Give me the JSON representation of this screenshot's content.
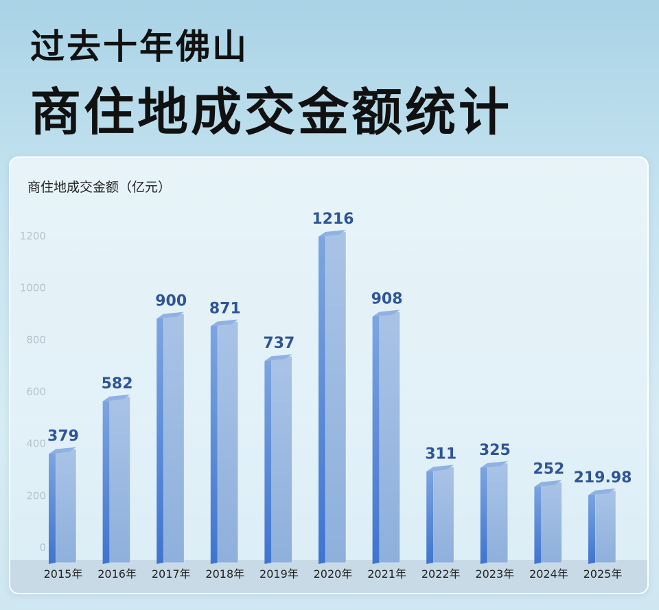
{
  "header": {
    "title_line1": "过去十年佛山",
    "title_line2": "商住地成交金额统计"
  },
  "colors": {
    "bar_front": "#9bb8de",
    "bar_side": "#4a7fd4",
    "bar_top": "#8fb2e2",
    "value_label": "#2f5597",
    "tick_label": "#b6c3ce"
  },
  "chart_data": {
    "type": "bar",
    "ylabel": "商住地成交金额（亿元）",
    "categories": [
      "2015年",
      "2016年",
      "2017年",
      "2018年",
      "2019年",
      "2020年",
      "2021年",
      "2022年",
      "2023年",
      "2024年",
      "2025年"
    ],
    "values": [
      379,
      582,
      900,
      871,
      737,
      1216,
      908,
      311,
      325,
      252,
      219.98
    ],
    "value_labels": [
      "379",
      "582",
      "900",
      "871",
      "737",
      "1216",
      "908",
      "311",
      "325",
      "252",
      "219.98"
    ],
    "yticks": [
      "0",
      "200",
      "400",
      "600",
      "800",
      "1000",
      "1200"
    ],
    "ylim": [
      0,
      1300
    ],
    "grid": false,
    "legend": "none"
  }
}
